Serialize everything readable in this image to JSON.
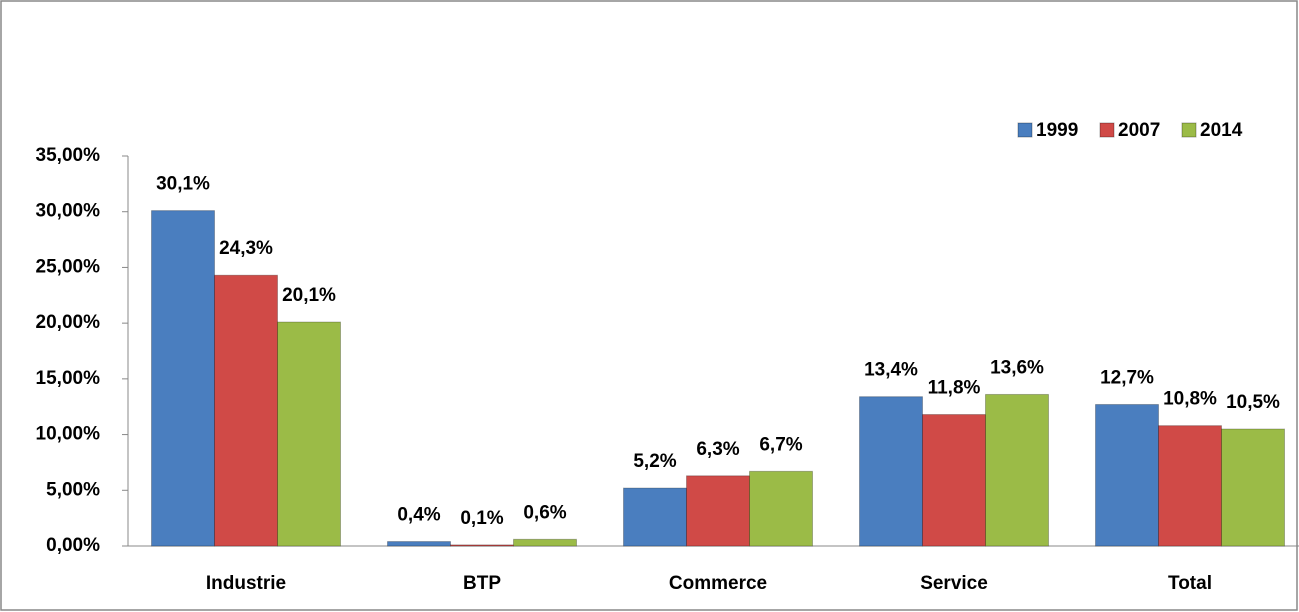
{
  "chart_data": {
    "type": "bar",
    "categories": [
      "Industrie",
      "BTP",
      "Commerce",
      "Service",
      "Total"
    ],
    "series": [
      {
        "name": "1999",
        "color": "#4a7ebf",
        "values": [
          30.1,
          0.4,
          5.2,
          13.4,
          12.7
        ],
        "value_labels": [
          "30,1%",
          "0,4%",
          "5,2%",
          "13,4%",
          "12,7%"
        ]
      },
      {
        "name": "2007",
        "color": "#d04a47",
        "values": [
          24.3,
          0.1,
          6.3,
          11.8,
          10.8
        ],
        "value_labels": [
          "24,3%",
          "0,1%",
          "6,3%",
          "11,8%",
          "10,8%"
        ]
      },
      {
        "name": "2014",
        "color": "#9bbb47",
        "values": [
          20.1,
          0.6,
          6.7,
          13.6,
          10.5
        ],
        "value_labels": [
          "20,1%",
          "0,6%",
          "6,7%",
          "13,6%",
          "10,5%"
        ]
      }
    ],
    "ylim": [
      0,
      35
    ],
    "yticks": [
      {
        "value": 0,
        "label": "0,00%"
      },
      {
        "value": 5,
        "label": "5,00%"
      },
      {
        "value": 10,
        "label": "10,00%"
      },
      {
        "value": 15,
        "label": "15,00%"
      },
      {
        "value": 20,
        "label": "20,00%"
      },
      {
        "value": 25,
        "label": "25,00%"
      },
      {
        "value": 30,
        "label": "30,00%"
      },
      {
        "value": 35,
        "label": "35,00%"
      }
    ],
    "grid": false,
    "legend": "top-right"
  }
}
